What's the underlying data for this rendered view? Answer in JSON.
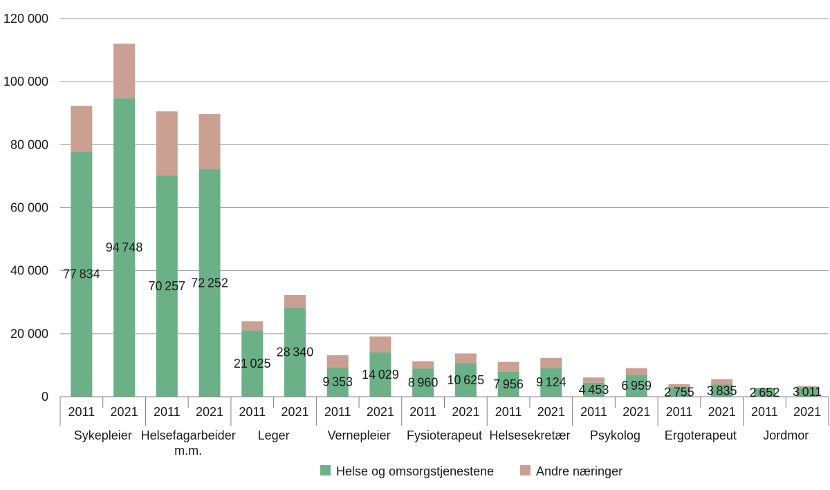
{
  "chart_data": {
    "type": "bar",
    "stacked": true,
    "groups": [
      {
        "label": [
          "Sykepleier"
        ],
        "bars": [
          {
            "year": "2011",
            "helse": 77834,
            "andre": 14500
          },
          {
            "year": "2021",
            "helse": 94748,
            "andre": 17300
          }
        ]
      },
      {
        "label": [
          "Helsefagarbeider",
          "m.m."
        ],
        "bars": [
          {
            "year": "2011",
            "helse": 70257,
            "andre": 20300
          },
          {
            "year": "2021",
            "helse": 72252,
            "andre": 17500
          }
        ]
      },
      {
        "label": [
          "Leger"
        ],
        "bars": [
          {
            "year": "2011",
            "helse": 21025,
            "andre": 2900
          },
          {
            "year": "2021",
            "helse": 28340,
            "andre": 3900
          }
        ]
      },
      {
        "label": [
          "Vernepleier"
        ],
        "bars": [
          {
            "year": "2011",
            "helse": 9353,
            "andre": 3800
          },
          {
            "year": "2021",
            "helse": 14029,
            "andre": 5100
          }
        ]
      },
      {
        "label": [
          "Fysioterapeut"
        ],
        "bars": [
          {
            "year": "2011",
            "helse": 8960,
            "andre": 2300
          },
          {
            "year": "2021",
            "helse": 10625,
            "andre": 3100
          }
        ]
      },
      {
        "label": [
          "Helsesekretær"
        ],
        "bars": [
          {
            "year": "2011",
            "helse": 7956,
            "andre": 3100
          },
          {
            "year": "2021",
            "helse": 9124,
            "andre": 3200
          }
        ]
      },
      {
        "label": [
          "Psykolog"
        ],
        "bars": [
          {
            "year": "2011",
            "helse": 4453,
            "andre": 1650
          },
          {
            "year": "2021",
            "helse": 6959,
            "andre": 2100
          }
        ]
      },
      {
        "label": [
          "Ergoterapeut"
        ],
        "bars": [
          {
            "year": "2011",
            "helse": 2755,
            "andre": 1200
          },
          {
            "year": "2021",
            "helse": 3835,
            "andre": 1750
          }
        ]
      },
      {
        "label": [
          "Jordmor"
        ],
        "bars": [
          {
            "year": "2011",
            "helse": 2652,
            "andre": 200
          },
          {
            "year": "2021",
            "helse": 3011,
            "andre": 350
          }
        ]
      }
    ],
    "series": [
      {
        "key": "helse",
        "name": "Helse og omsorgstjenestene",
        "color": "#6bb086"
      },
      {
        "key": "andre",
        "name": "Andre næringer",
        "color": "#c9a092"
      }
    ],
    "ylim": [
      0,
      120000
    ],
    "yticks": [
      0,
      20000,
      40000,
      60000,
      80000,
      100000,
      120000
    ],
    "ytick_labels": [
      "0",
      "20 000",
      "40 000",
      "60 000",
      "80 000",
      "100 000",
      "120 000"
    ],
    "grid": true,
    "legend_position": "bottom-center",
    "value_labels_shown_for": "helse"
  }
}
